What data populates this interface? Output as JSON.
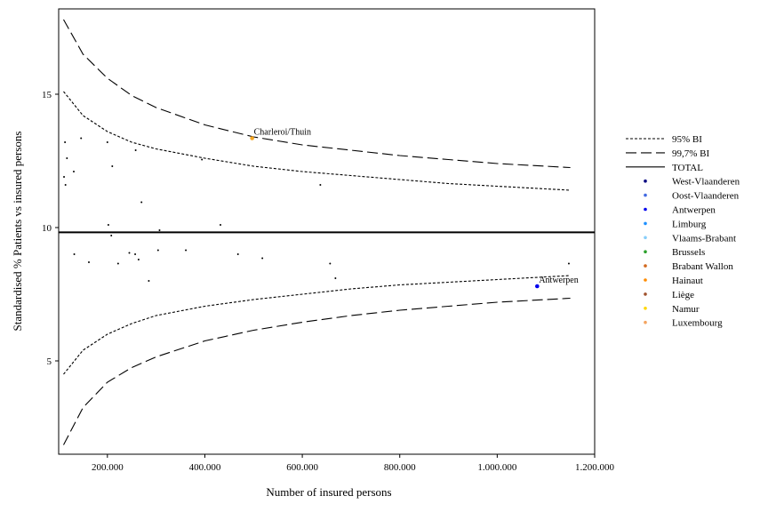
{
  "chart_data": {
    "type": "scatter",
    "title": "",
    "xlabel": "Number of insured persons",
    "ylabel": "Standardised % Patients vs insured persons",
    "xlim": [
      100000,
      1200000
    ],
    "ylim": [
      1.5,
      18.2
    ],
    "x_ticks": [
      200000,
      400000,
      600000,
      800000,
      1000000,
      1200000
    ],
    "x_tick_labels": [
      "200.000",
      "400.000",
      "600.000",
      "800.000",
      "1.000.000",
      "1.200.000"
    ],
    "y_ticks": [
      5,
      10,
      15
    ],
    "y_tick_labels": [
      "5",
      "10",
      "15"
    ],
    "grid": false,
    "legend_position": "right",
    "total_value": 9.82,
    "control_limits": [
      {
        "name": "95% BI",
        "dash": "dotted",
        "x": [
          110000,
          150000,
          200000,
          250000,
          300000,
          400000,
          500000,
          600000,
          700000,
          800000,
          900000,
          1000000,
          1100000,
          1150000
        ],
        "upper": [
          15.1,
          14.2,
          13.6,
          13.2,
          12.95,
          12.6,
          12.3,
          12.1,
          11.95,
          11.8,
          11.65,
          11.55,
          11.45,
          11.4
        ],
        "lower": [
          4.5,
          5.4,
          6.0,
          6.4,
          6.7,
          7.05,
          7.3,
          7.5,
          7.7,
          7.85,
          7.95,
          8.05,
          8.15,
          8.2
        ]
      },
      {
        "name": "99,7% BI",
        "dash": "dashed",
        "x": [
          110000,
          150000,
          200000,
          250000,
          300000,
          400000,
          500000,
          600000,
          700000,
          800000,
          900000,
          1000000,
          1100000,
          1150000
        ],
        "upper": [
          17.8,
          16.5,
          15.6,
          14.95,
          14.5,
          13.85,
          13.4,
          13.1,
          12.9,
          12.7,
          12.55,
          12.4,
          12.3,
          12.25
        ],
        "lower": [
          1.85,
          3.25,
          4.2,
          4.75,
          5.15,
          5.75,
          6.15,
          6.45,
          6.7,
          6.9,
          7.05,
          7.2,
          7.3,
          7.35
        ]
      }
    ],
    "points": [
      {
        "x": 113000,
        "y": 13.2
      },
      {
        "x": 117000,
        "y": 12.6
      },
      {
        "x": 111000,
        "y": 11.9
      },
      {
        "x": 114000,
        "y": 11.6
      },
      {
        "x": 131000,
        "y": 12.1
      },
      {
        "x": 146000,
        "y": 13.35
      },
      {
        "x": 200000,
        "y": 13.2
      },
      {
        "x": 210000,
        "y": 12.3
      },
      {
        "x": 258000,
        "y": 12.9
      },
      {
        "x": 270000,
        "y": 10.95
      },
      {
        "x": 202000,
        "y": 10.1
      },
      {
        "x": 208000,
        "y": 9.7
      },
      {
        "x": 132000,
        "y": 9.0
      },
      {
        "x": 162000,
        "y": 8.7
      },
      {
        "x": 222000,
        "y": 8.65
      },
      {
        "x": 245000,
        "y": 9.05
      },
      {
        "x": 257000,
        "y": 9.0
      },
      {
        "x": 264000,
        "y": 8.8
      },
      {
        "x": 285000,
        "y": 8.0
      },
      {
        "x": 304000,
        "y": 9.15
      },
      {
        "x": 307000,
        "y": 9.9
      },
      {
        "x": 361000,
        "y": 9.15
      },
      {
        "x": 394000,
        "y": 12.55
      },
      {
        "x": 432000,
        "y": 10.1
      },
      {
        "x": 468000,
        "y": 9.0
      },
      {
        "x": 518000,
        "y": 8.85
      },
      {
        "x": 637000,
        "y": 11.6
      },
      {
        "x": 657000,
        "y": 8.65
      },
      {
        "x": 668000,
        "y": 8.1
      },
      {
        "x": 1147000,
        "y": 8.65
      },
      {
        "x": 497000,
        "y": 13.35,
        "color": "#f5a623",
        "size": 4,
        "label": "Charleroi/Thuin"
      },
      {
        "x": 1082000,
        "y": 7.8,
        "color": "#0000ee",
        "size": 4,
        "label": "Antwerpen"
      }
    ],
    "legend": [
      {
        "label": "95% BI",
        "kind": "line",
        "dash": "dotted"
      },
      {
        "label": "99,7% BI",
        "kind": "line",
        "dash": "dashed"
      },
      {
        "label": "TOTAL",
        "kind": "line",
        "dash": "solid"
      },
      {
        "label": "West-Vlaanderen",
        "kind": "dot",
        "color": "#000080"
      },
      {
        "label": "Oost-Vlaanderen",
        "kind": "dot",
        "color": "#4169e1"
      },
      {
        "label": "Antwerpen",
        "kind": "dot",
        "color": "#0000ee"
      },
      {
        "label": "Limburg",
        "kind": "dot",
        "color": "#1e90ff"
      },
      {
        "label": "Vlaams-Brabant",
        "kind": "dot",
        "color": "#87cefa"
      },
      {
        "label": "Brussels",
        "kind": "dot",
        "color": "#2ca02c"
      },
      {
        "label": "Brabant Wallon",
        "kind": "dot",
        "color": "#d2691e"
      },
      {
        "label": "Hainaut",
        "kind": "dot",
        "color": "#ff8c00"
      },
      {
        "label": "Liège",
        "kind": "dot",
        "color": "#a0522d"
      },
      {
        "label": "Namur",
        "kind": "dot",
        "color": "#ffd700"
      },
      {
        "label": "Luxembourg",
        "kind": "dot",
        "color": "#f4a460"
      }
    ]
  }
}
